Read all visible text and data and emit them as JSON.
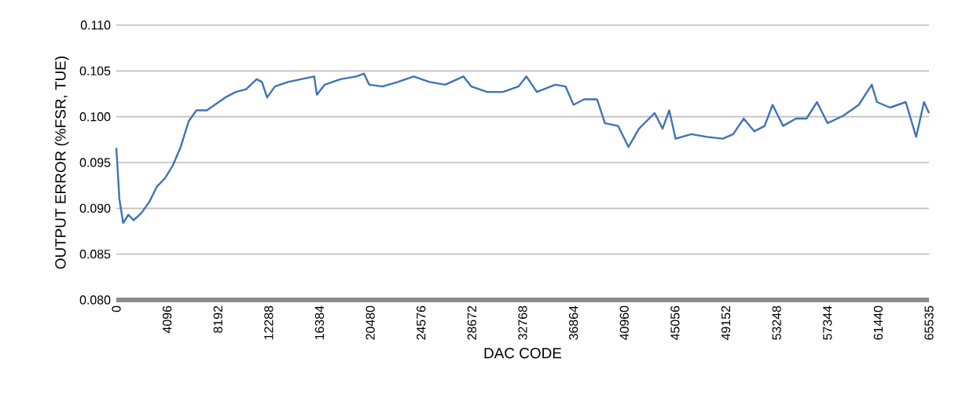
{
  "chart_data": {
    "type": "line",
    "xlabel": "DAC CODE",
    "ylabel": "OUTPUT ERROR (%FSR, TUE)",
    "xlim": [
      0,
      65535
    ],
    "ylim": [
      0.08,
      0.11
    ],
    "xticks": [
      0,
      4096,
      8192,
      12288,
      16384,
      20480,
      24576,
      28672,
      32768,
      36864,
      40960,
      45056,
      49152,
      53248,
      57344,
      61440,
      65535
    ],
    "yticks": [
      {
        "value": 0.08,
        "label": "0.080"
      },
      {
        "value": 0.085,
        "label": "0.085"
      },
      {
        "value": 0.09,
        "label": "0.090"
      },
      {
        "value": 0.095,
        "label": "0.095"
      },
      {
        "value": 0.1,
        "label": "0.100"
      },
      {
        "value": 0.105,
        "label": "0.105"
      },
      {
        "value": 0.11,
        "label": "0.110"
      }
    ],
    "grid": "y",
    "marker": "none",
    "line_style": "solid",
    "series": [
      {
        "color": "#3f73b5",
        "x": [
          0,
          250,
          550,
          970,
          1390,
          2030,
          2660,
          3290,
          3930,
          4560,
          5190,
          5830,
          6460,
          7300,
          7940,
          8780,
          9630,
          10470,
          11320,
          11740,
          12160,
          12790,
          13850,
          14910,
          15960,
          16170,
          16810,
          18070,
          19340,
          19970,
          20390,
          21450,
          22720,
          23980,
          25250,
          26520,
          27990,
          28630,
          29900,
          31170,
          32430,
          33070,
          33910,
          35390,
          36230,
          36870,
          37720,
          38770,
          39400,
          40460,
          41300,
          42150,
          43410,
          44050,
          44590,
          45100,
          46370,
          47640,
          48900,
          49750,
          50590,
          51440,
          52280,
          52920,
          53760,
          54810,
          55660,
          56500,
          57350,
          58610,
          59870,
          60920,
          61340,
          62390,
          63660,
          64500,
          65130,
          65535
        ],
        "values": [
          0.0966,
          0.091,
          0.0884,
          0.0893,
          0.0887,
          0.0895,
          0.0907,
          0.0924,
          0.0933,
          0.0947,
          0.0967,
          0.0995,
          0.1007,
          0.1007,
          0.1013,
          0.1021,
          0.1027,
          0.103,
          0.1041,
          0.1038,
          0.1021,
          0.1033,
          0.1038,
          0.1041,
          0.1044,
          0.1024,
          0.1035,
          0.1041,
          0.1044,
          0.1047,
          0.1035,
          0.1033,
          0.1038,
          0.1044,
          0.1038,
          0.1035,
          0.1044,
          0.1033,
          0.1027,
          0.1027,
          0.1033,
          0.1044,
          0.1027,
          0.1035,
          0.1033,
          0.1013,
          0.1019,
          0.1019,
          0.0993,
          0.099,
          0.0967,
          0.0987,
          0.1004,
          0.0987,
          0.1007,
          0.0976,
          0.0981,
          0.0978,
          0.0976,
          0.0981,
          0.0998,
          0.0984,
          0.099,
          0.1013,
          0.099,
          0.0998,
          0.0998,
          0.1016,
          0.0993,
          0.1001,
          0.1013,
          0.1035,
          0.1016,
          0.101,
          0.1016,
          0.0978,
          0.1016,
          0.1004
        ]
      }
    ]
  }
}
